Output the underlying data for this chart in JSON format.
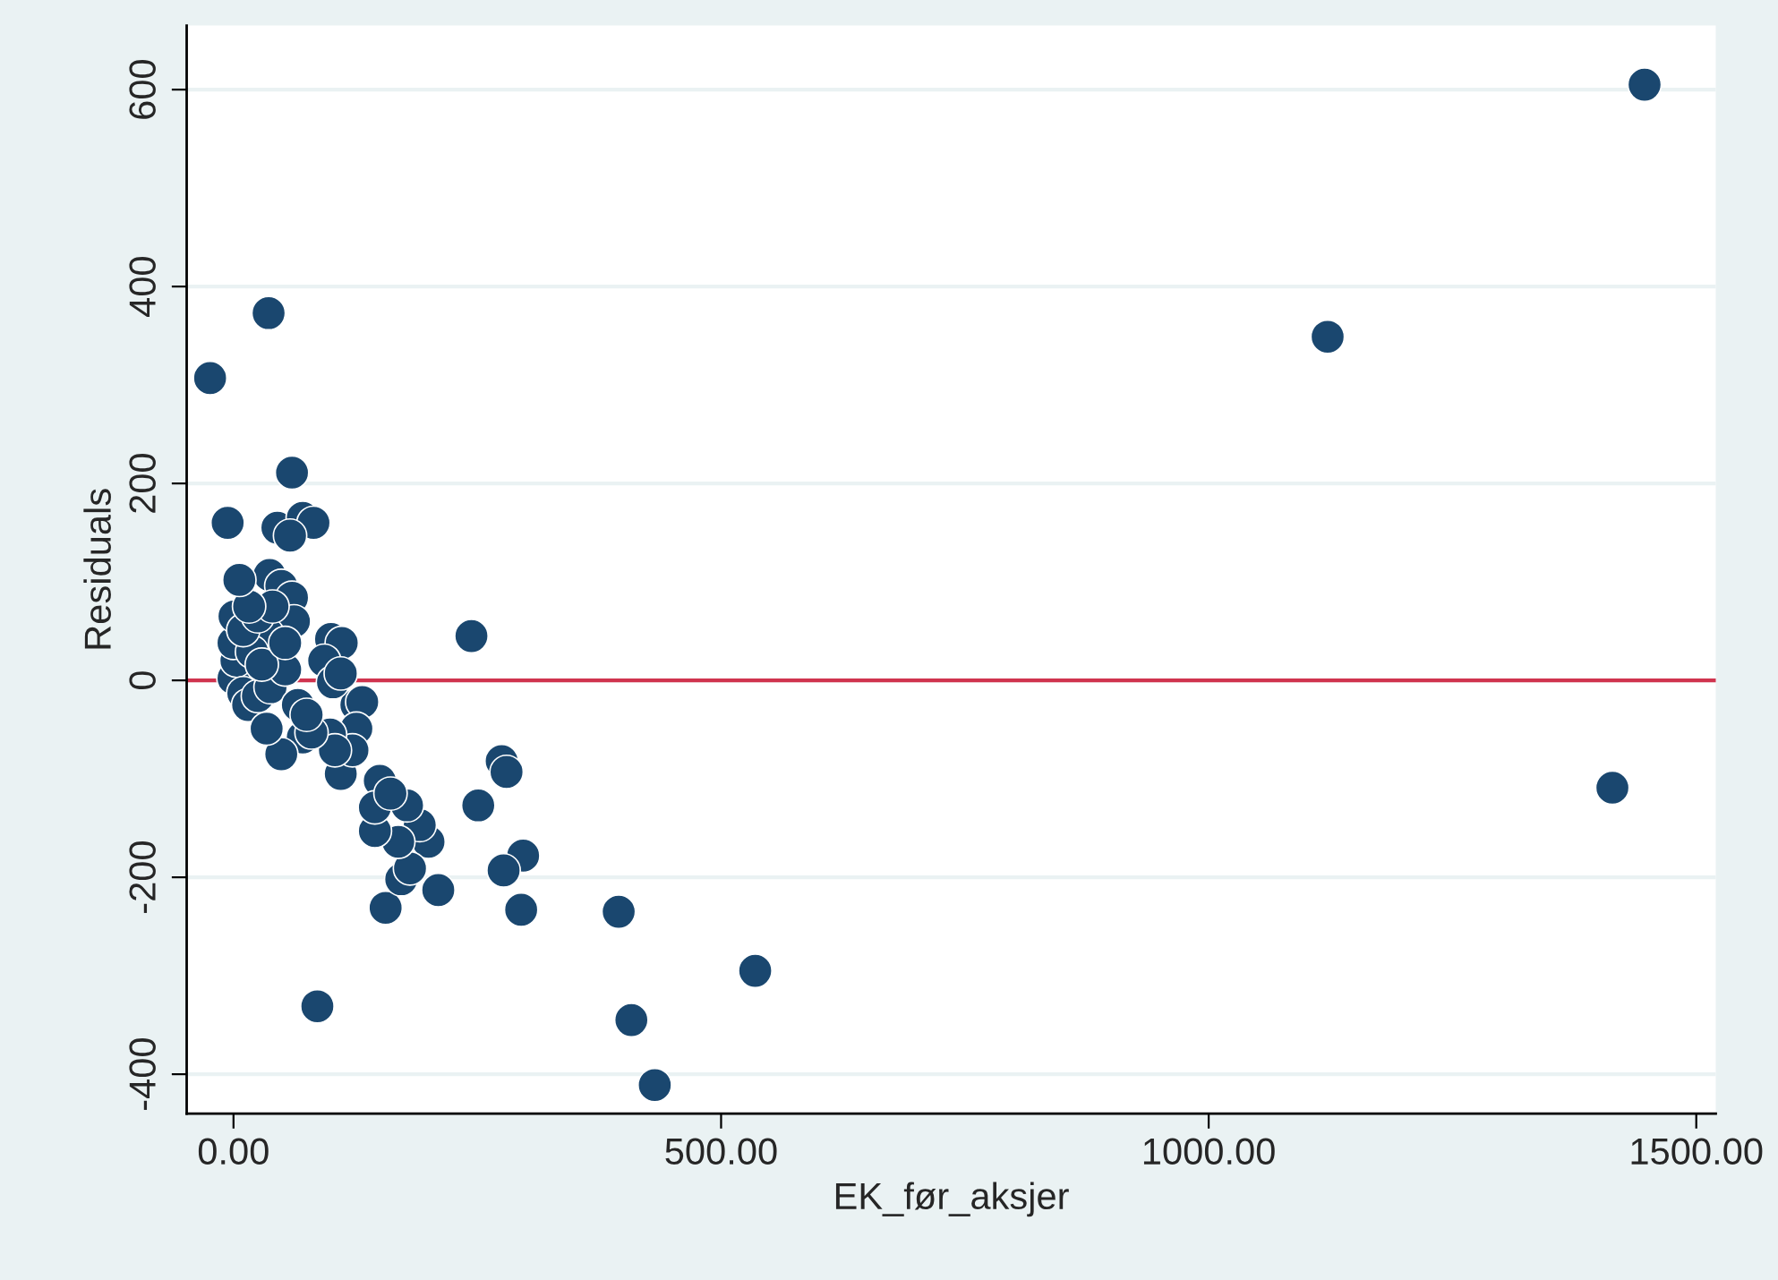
{
  "chart_data": {
    "type": "scatter",
    "xlabel": "EK_før_aksjer",
    "ylabel": "Residuals",
    "series": [
      {
        "color": "#1a476f",
        "x": [
          -24,
          36,
          -6,
          60,
          45,
          71,
          82,
          58,
          244,
          1122,
          1447,
          1414,
          535,
          432,
          408,
          395,
          86,
          210,
          156,
          295,
          297,
          277,
          275,
          280,
          251,
          200,
          191,
          178,
          172,
          181,
          169,
          150,
          145,
          145,
          161,
          110,
          126,
          132,
          126,
          122,
          100,
          111,
          93,
          102,
          110,
          99,
          104,
          0,
          3,
          0,
          1,
          37,
          49,
          60,
          62,
          35,
          19,
          10,
          15,
          71,
          80,
          49,
          34,
          25,
          38,
          53,
          29,
          10,
          25,
          40,
          16,
          6,
          53,
          66,
          75
        ],
        "values": [
          307,
          373,
          160,
          211,
          155,
          165,
          160,
          147,
          45,
          349,
          605,
          -109,
          -295,
          -411,
          -345,
          -235,
          -331,
          -213,
          -231,
          -233,
          -178,
          -193,
          -82,
          -93,
          -127,
          -164,
          -147,
          -127,
          -202,
          -191,
          -164,
          -102,
          -153,
          -129,
          -115,
          -95,
          -25,
          -22,
          -49,
          -71,
          42,
          38,
          20,
          -2,
          7,
          -55,
          -71,
          2,
          20,
          38,
          65,
          107,
          96,
          84,
          60,
          47,
          29,
          -13,
          -25,
          -58,
          -53,
          -75,
          -49,
          -16,
          -7,
          11,
          16,
          51,
          65,
          75,
          75,
          102,
          38,
          -25,
          -35
        ]
      }
    ],
    "marker": "circle",
    "xlim": [
      -48,
      1520
    ],
    "ylim": [
      -440,
      665
    ],
    "xticks": [
      {
        "value": 0,
        "label": "0.00"
      },
      {
        "value": 500,
        "label": "500.00"
      },
      {
        "value": 1000,
        "label": "1000.00"
      },
      {
        "value": 1500,
        "label": "1500.00"
      }
    ],
    "yticks": [
      -400,
      -200,
      0,
      200,
      400,
      600
    ],
    "grid": "y",
    "ref_lines": [
      {
        "axis": "y",
        "value": 0,
        "color": "#d0344f"
      }
    ]
  }
}
